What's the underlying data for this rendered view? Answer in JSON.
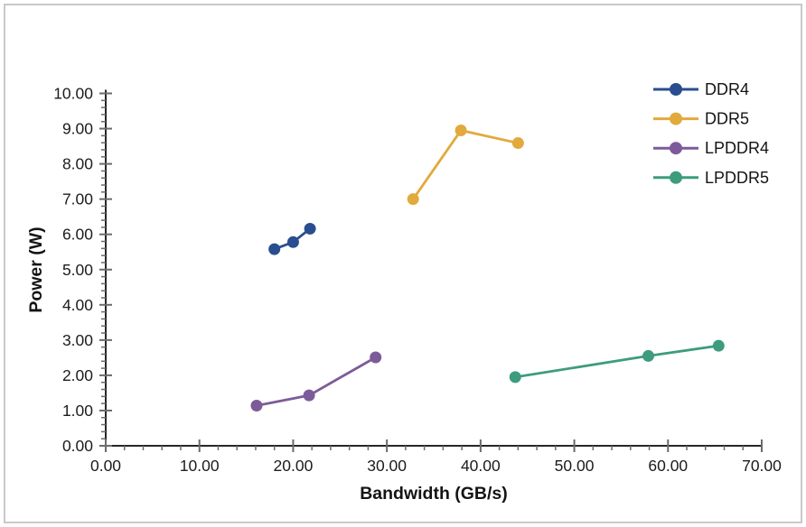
{
  "frame": {
    "border_color": "#c9c9c9",
    "background": "#ffffff"
  },
  "chart_data": {
    "type": "line",
    "title": "",
    "xlabel": "Bandwidth (GB/s)",
    "ylabel": "Power (W)",
    "xlim": [
      0,
      70
    ],
    "ylim": [
      0,
      10
    ],
    "x_major_step": 10,
    "x_minor_step": 2,
    "y_major_step": 1,
    "y_minor_step": 0.2,
    "x_tick_labels": [
      "0.00",
      "10.00",
      "20.00",
      "30.00",
      "40.00",
      "50.00",
      "60.00",
      "70.00"
    ],
    "y_tick_labels": [
      "0.00",
      "1.00",
      "2.00",
      "3.00",
      "4.00",
      "5.00",
      "6.00",
      "7.00",
      "8.00",
      "9.00",
      "10.00"
    ],
    "grid": false,
    "legend_position": "top-right",
    "marker": "circle",
    "axis_color": "#262626",
    "tick_color": "#6b6b6b",
    "text_color": "#1c1c1c",
    "series": [
      {
        "name": "DDR4",
        "color": "#2a4d8f",
        "points": [
          [
            18.0,
            5.58
          ],
          [
            20.0,
            5.78
          ],
          [
            21.8,
            6.16
          ]
        ]
      },
      {
        "name": "DDR5",
        "color": "#e2a93c",
        "points": [
          [
            32.8,
            7.0
          ],
          [
            37.9,
            8.95
          ],
          [
            44.0,
            8.59
          ]
        ]
      },
      {
        "name": "LPDDR4",
        "color": "#7d5b99",
        "points": [
          [
            16.1,
            1.14
          ],
          [
            21.7,
            1.43
          ],
          [
            28.8,
            2.51
          ]
        ]
      },
      {
        "name": "LPDDR5",
        "color": "#3d9c7e",
        "points": [
          [
            43.7,
            1.95
          ],
          [
            57.9,
            2.55
          ],
          [
            65.4,
            2.84
          ]
        ]
      }
    ]
  }
}
